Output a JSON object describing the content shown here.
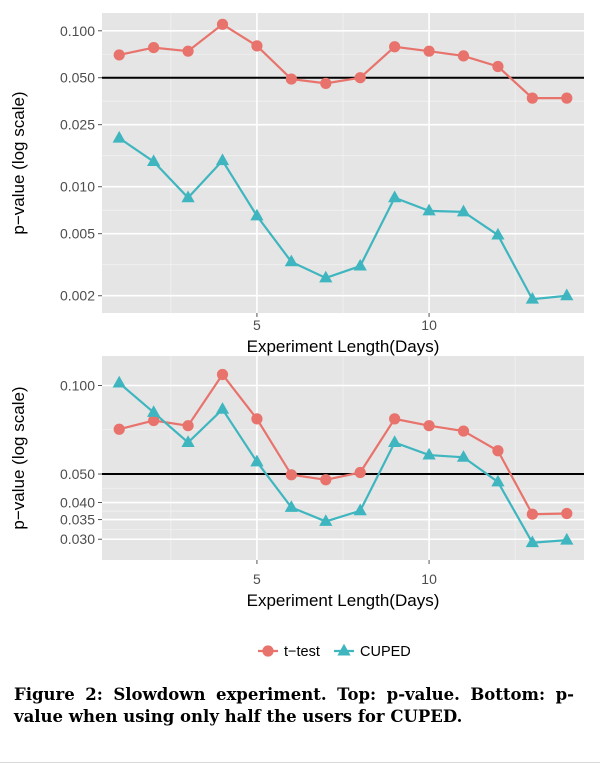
{
  "chart_data": [
    {
      "type": "line",
      "panel": "top",
      "xlabel": "Experiment Length(Days)",
      "ylabel": "p−value (log scale)",
      "y_scale": "log",
      "xlim": [
        0.5,
        14.5
      ],
      "ylim": [
        0.00155,
        0.13
      ],
      "x_ticks": [
        5,
        10
      ],
      "x_tick_labels": [
        "5",
        "10"
      ],
      "y_ticks": [
        0.1,
        0.05,
        0.025,
        0.01,
        0.005,
        0.002
      ],
      "y_tick_labels": [
        "0.100",
        "0.050",
        "0.025",
        "0.010",
        "0.005",
        "0.002"
      ],
      "reference_line": 0.05,
      "grid": true,
      "x": [
        1,
        2,
        3,
        4,
        5,
        6,
        7,
        8,
        9,
        10,
        11,
        12,
        13,
        14
      ],
      "series": [
        {
          "name": "t−test",
          "marker": "circle",
          "color": "#e8736c",
          "values": [
            0.07,
            0.078,
            0.074,
            0.11,
            0.08,
            0.049,
            0.046,
            0.05,
            0.079,
            0.074,
            0.069,
            0.059,
            0.037,
            0.037
          ]
        },
        {
          "name": "CUPED",
          "marker": "triangle",
          "color": "#3fb6bf",
          "values": [
            0.0205,
            0.0145,
            0.0085,
            0.0147,
            0.0065,
            0.0033,
            0.0026,
            0.0031,
            0.0085,
            0.007,
            0.0069,
            0.0049,
            0.0019,
            0.002
          ]
        }
      ]
    },
    {
      "type": "line",
      "panel": "bottom",
      "xlabel": "Experiment Length(Days)",
      "ylabel": "p−value (log scale)",
      "y_scale": "log",
      "xlim": [
        0.5,
        14.5
      ],
      "ylim": [
        0.0255,
        0.126
      ],
      "x_ticks": [
        5,
        10
      ],
      "x_tick_labels": [
        "5",
        "10"
      ],
      "y_ticks": [
        0.1,
        0.05,
        0.04,
        0.035,
        0.03
      ],
      "y_tick_labels": [
        "0.100",
        "0.050",
        "0.040",
        "0.035",
        "0.030"
      ],
      "reference_line": 0.05,
      "grid": true,
      "x": [
        1,
        2,
        3,
        4,
        5,
        6,
        7,
        8,
        9,
        10,
        11,
        12,
        13,
        14
      ],
      "series": [
        {
          "name": "t−test",
          "marker": "circle",
          "color": "#e8736c",
          "values": [
            0.071,
            0.076,
            0.073,
            0.109,
            0.077,
            0.0497,
            0.0478,
            0.0506,
            0.077,
            0.073,
            0.07,
            0.06,
            0.0365,
            0.0367
          ]
        },
        {
          "name": "CUPED",
          "marker": "triangle",
          "color": "#3fb6bf",
          "values": [
            0.102,
            0.081,
            0.064,
            0.083,
            0.055,
            0.0385,
            0.0345,
            0.0375,
            0.064,
            0.058,
            0.057,
            0.047,
            0.0292,
            0.0298
          ]
        }
      ]
    }
  ],
  "legend": {
    "items": [
      {
        "label": "t−test",
        "marker": "circle",
        "color": "#e8736c"
      },
      {
        "label": "CUPED",
        "marker": "triangle",
        "color": "#3fb6bf"
      }
    ]
  },
  "caption": {
    "label": "Figure 2:",
    "text": "Slowdown experiment. Top: p-value. Bottom: p-value when using only half the users for CUPED."
  },
  "colors": {
    "panel_background": "#e5e5e5",
    "gridline": "#ffffff",
    "reference_line": "#000000"
  }
}
